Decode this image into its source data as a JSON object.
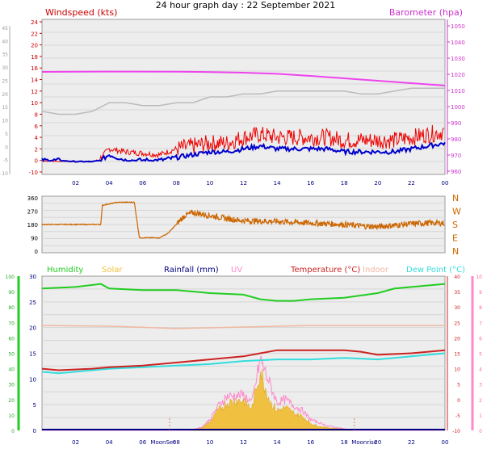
{
  "title": "24 hour graph day : 22 September 2021",
  "colors": {
    "wind": "#ee0000",
    "windAvg": "#0000cc",
    "barometer": "#ee44ee",
    "gust_grey": "#bbbbbb",
    "direction": "#cc6600",
    "humidity": "#22cc22",
    "solar": "#f0c040",
    "rainfall": "#000080",
    "uv": "#ff88cc",
    "temperature": "#cc2222",
    "indoor": "#f0b8a0",
    "dewpoint": "#33dddd"
  },
  "chart_data": [
    {
      "type": "line",
      "panel": "wind-barometer",
      "left_label": "Windspeed (kts)",
      "right_label": "Barometer (hpa)",
      "left_ticks": [
        "-10",
        "0",
        "2",
        "4",
        "6",
        "8",
        "10",
        "12",
        "14",
        "16",
        "18",
        "20",
        "22",
        "24"
      ],
      "left_outer_ticks": [
        "-10",
        "-5",
        "0",
        "5",
        "10",
        "15",
        "20",
        "25",
        "30",
        "35",
        "40",
        "45"
      ],
      "right_ticks": [
        "960",
        "970",
        "980",
        "990",
        "1000",
        "1010",
        "1020",
        "1030",
        "1040",
        "1050"
      ],
      "x_ticks": [
        "02",
        "04",
        "06",
        "08",
        "10",
        "12",
        "14",
        "16",
        "18",
        "20",
        "22",
        "00"
      ],
      "barometer_hpa": [
        [
          0,
          1021.5
        ],
        [
          4,
          1021.7
        ],
        [
          8,
          1021.6
        ],
        [
          10,
          1021.4
        ],
        [
          12,
          1021.0
        ],
        [
          14,
          1020.3
        ],
        [
          16,
          1019.0
        ],
        [
          18,
          1017.5
        ],
        [
          20,
          1016.0
        ],
        [
          22,
          1014.5
        ],
        [
          24,
          1013.0
        ]
      ],
      "wind_gust_kts": [
        [
          0,
          -0.5
        ],
        [
          2,
          -1
        ],
        [
          3,
          -1
        ],
        [
          4,
          2
        ],
        [
          5,
          1.5
        ],
        [
          7,
          1
        ],
        [
          8,
          2
        ],
        [
          9,
          2.5
        ],
        [
          10,
          3
        ],
        [
          11,
          3
        ],
        [
          12,
          4
        ],
        [
          13,
          4.5
        ],
        [
          14,
          4
        ],
        [
          15,
          4
        ],
        [
          16,
          4
        ],
        [
          17,
          4
        ],
        [
          18,
          3.5
        ],
        [
          19,
          3.5
        ],
        [
          20,
          3.5
        ],
        [
          21,
          3.5
        ],
        [
          22,
          4
        ],
        [
          23,
          4.5
        ],
        [
          24,
          5
        ]
      ],
      "wind_avg_kts": [
        [
          0,
          0
        ],
        [
          1,
          0
        ],
        [
          2,
          -1
        ],
        [
          3,
          -1
        ],
        [
          4,
          1
        ],
        [
          5,
          0
        ],
        [
          6,
          0
        ],
        [
          7,
          0
        ],
        [
          8,
          0.5
        ],
        [
          9,
          1
        ],
        [
          10,
          1.5
        ],
        [
          11,
          1.5
        ],
        [
          12,
          2
        ],
        [
          13,
          2.5
        ],
        [
          14,
          2
        ],
        [
          15,
          2
        ],
        [
          16,
          2
        ],
        [
          17,
          2
        ],
        [
          18,
          1.5
        ],
        [
          19,
          1.5
        ],
        [
          20,
          1.5
        ],
        [
          21,
          1.5
        ],
        [
          22,
          2
        ],
        [
          23,
          2.5
        ],
        [
          24,
          3
        ]
      ],
      "grey_line": [
        [
          0,
          8.5
        ],
        [
          1,
          8
        ],
        [
          2,
          8
        ],
        [
          3,
          8.5
        ],
        [
          4,
          10
        ],
        [
          5,
          10
        ],
        [
          6,
          9.5
        ],
        [
          7,
          9.5
        ],
        [
          8,
          10
        ],
        [
          9,
          10
        ],
        [
          10,
          11
        ],
        [
          11,
          11
        ],
        [
          12,
          11.5
        ],
        [
          13,
          11.5
        ],
        [
          14,
          12
        ],
        [
          15,
          12
        ],
        [
          16,
          12
        ],
        [
          17,
          12
        ],
        [
          18,
          12
        ],
        [
          19,
          11.5
        ],
        [
          20,
          11.5
        ],
        [
          21,
          12
        ],
        [
          22,
          12.5
        ],
        [
          23,
          12.5
        ],
        [
          24,
          12.5
        ]
      ]
    },
    {
      "type": "line",
      "panel": "wind-direction",
      "left_ticks": [
        "0",
        "90",
        "180",
        "270",
        "360"
      ],
      "right_ticks": [
        "N",
        "W",
        "S",
        "E",
        "N"
      ],
      "direction_deg": [
        [
          0,
          180
        ],
        [
          3.5,
          180
        ],
        [
          3.6,
          310
        ],
        [
          4.5,
          330
        ],
        [
          5.5,
          330
        ],
        [
          5.8,
          90
        ],
        [
          7,
          90
        ],
        [
          7.5,
          120
        ],
        [
          8,
          180
        ],
        [
          8.5,
          240
        ],
        [
          9,
          260
        ],
        [
          10,
          240
        ],
        [
          11,
          220
        ],
        [
          12,
          205
        ],
        [
          14,
          200
        ],
        [
          16,
          190
        ],
        [
          18,
          180
        ],
        [
          19,
          170
        ],
        [
          20,
          165
        ],
        [
          21,
          175
        ],
        [
          22,
          185
        ],
        [
          23,
          190
        ],
        [
          24,
          190
        ]
      ]
    },
    {
      "type": "line",
      "panel": "temperature-humidity",
      "legend": [
        "Humidity",
        "Solar",
        "Rainfall (mm)",
        "UV",
        "Temperature (°C)",
        "Indoor",
        "Dew Point (°C)"
      ],
      "humidity_ticks": [
        "0",
        "10",
        "20",
        "30",
        "40",
        "50",
        "60",
        "70",
        "80",
        "90",
        "100"
      ],
      "rain_ticks": [
        "0",
        "5",
        "10",
        "15",
        "20",
        "25",
        "30"
      ],
      "temp_ticks": [
        "-10",
        "-5",
        "0",
        "5",
        "10",
        "15",
        "20",
        "25",
        "30",
        "35",
        "40"
      ],
      "uv_ticks": [
        "0",
        "1",
        "2",
        "3",
        "4",
        "5",
        "6",
        "7",
        "8",
        "9",
        "10"
      ],
      "x_ticks": [
        "02",
        "04",
        "06",
        "08",
        "10",
        "12",
        "14",
        "16",
        "18",
        "20",
        "22",
        "00"
      ],
      "x_annotations": [
        "MoonSet",
        "Moonrise"
      ],
      "humidity_pct": [
        [
          0,
          92
        ],
        [
          2,
          93
        ],
        [
          3.5,
          95
        ],
        [
          4,
          92
        ],
        [
          6,
          91
        ],
        [
          8,
          91
        ],
        [
          10,
          89
        ],
        [
          12,
          88
        ],
        [
          13,
          85
        ],
        [
          14,
          84
        ],
        [
          15,
          84
        ],
        [
          16,
          85
        ],
        [
          18,
          86
        ],
        [
          20,
          89
        ],
        [
          21,
          92
        ],
        [
          22,
          93
        ],
        [
          24,
          95
        ]
      ],
      "indoor_c": [
        [
          0,
          24
        ],
        [
          4,
          23.8
        ],
        [
          8,
          23
        ],
        [
          12,
          23.5
        ],
        [
          16,
          24
        ],
        [
          20,
          24
        ],
        [
          24,
          24
        ]
      ],
      "temperature_c": [
        [
          0,
          10
        ],
        [
          1,
          9.5
        ],
        [
          3,
          10
        ],
        [
          4,
          10.5
        ],
        [
          6,
          11
        ],
        [
          8,
          12
        ],
        [
          10,
          13
        ],
        [
          12,
          14
        ],
        [
          13,
          15
        ],
        [
          14,
          16
        ],
        [
          15,
          16
        ],
        [
          16,
          16
        ],
        [
          18,
          16
        ],
        [
          19,
          15.5
        ],
        [
          20,
          14.5
        ],
        [
          22,
          15
        ],
        [
          24,
          16
        ]
      ],
      "dewpoint_c": [
        [
          0,
          9
        ],
        [
          1,
          8.5
        ],
        [
          3,
          9.5
        ],
        [
          4,
          10
        ],
        [
          6,
          10.5
        ],
        [
          8,
          11
        ],
        [
          10,
          11.5
        ],
        [
          12,
          12.5
        ],
        [
          14,
          13
        ],
        [
          16,
          13
        ],
        [
          18,
          13.5
        ],
        [
          20,
          13
        ],
        [
          22,
          14
        ],
        [
          24,
          15
        ]
      ],
      "solar_relative": [
        [
          0,
          0
        ],
        [
          8.8,
          0
        ],
        [
          9,
          0.1
        ],
        [
          9.5,
          0.2
        ],
        [
          10,
          0.6
        ],
        [
          10.5,
          1.4
        ],
        [
          11,
          1.9
        ],
        [
          11.5,
          2.1
        ],
        [
          12,
          2.1
        ],
        [
          12.5,
          1.5
        ],
        [
          13,
          4.2
        ],
        [
          13.3,
          3.0
        ],
        [
          13.6,
          2.0
        ],
        [
          14,
          1.4
        ],
        [
          14.5,
          1.6
        ],
        [
          15,
          1.2
        ],
        [
          15.5,
          1.0
        ],
        [
          16,
          0.5
        ],
        [
          16.5,
          0.3
        ],
        [
          17,
          0.2
        ],
        [
          18,
          0.1
        ],
        [
          18.5,
          0
        ],
        [
          24,
          0
        ]
      ],
      "uv_index": [
        [
          0,
          0
        ],
        [
          8.8,
          0
        ],
        [
          9.5,
          0.2
        ],
        [
          10,
          0.7
        ],
        [
          10.5,
          1.6
        ],
        [
          11,
          2.2
        ],
        [
          12,
          2.3
        ],
        [
          12.5,
          1.8
        ],
        [
          13,
          4.6
        ],
        [
          13.5,
          3.2
        ],
        [
          14,
          1.8
        ],
        [
          14.5,
          2.0
        ],
        [
          15,
          1.6
        ],
        [
          15.5,
          1.3
        ],
        [
          16,
          0.7
        ],
        [
          17,
          0.3
        ],
        [
          18,
          0.1
        ],
        [
          18.5,
          0
        ],
        [
          24,
          0
        ]
      ]
    }
  ]
}
